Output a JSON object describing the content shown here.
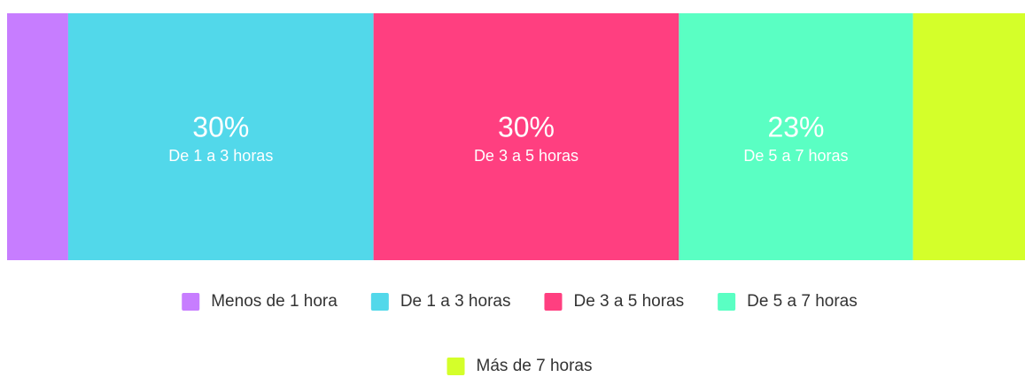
{
  "chart_data": {
    "type": "bar",
    "stacked": true,
    "orientation": "horizontal",
    "categories": [
      "Menos de 1 hora",
      "De 1 a 3 horas",
      "De 3 a 5 horas",
      "De 5 a 7 horas",
      "Más de 7 horas"
    ],
    "values": [
      6,
      30,
      30,
      23,
      11
    ],
    "value_labels": [
      null,
      "30%",
      "30%",
      "23%",
      null
    ],
    "colors": [
      "#c77dff",
      "#52d8ea",
      "#ff3f80",
      "#5affc3",
      "#d4ff2a"
    ],
    "xlim": [
      0,
      100
    ]
  }
}
